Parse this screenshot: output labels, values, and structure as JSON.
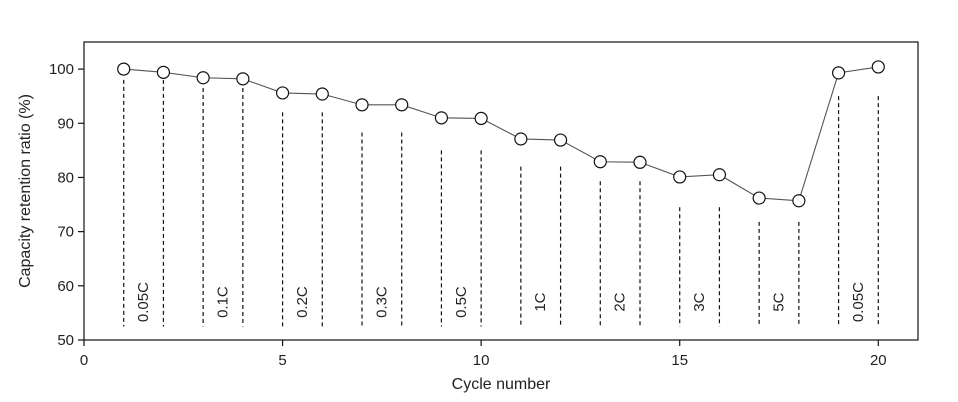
{
  "chart_data": {
    "type": "line",
    "xlabel": "Cycle number",
    "ylabel": "Capacity retention ratio (%)",
    "xlim": [
      0,
      21
    ],
    "ylim": [
      50,
      105
    ],
    "x_ticks": [
      0,
      5,
      10,
      15,
      20
    ],
    "y_ticks": [
      50,
      60,
      70,
      80,
      90,
      100
    ],
    "grid": false,
    "series": [
      {
        "x": [
          1,
          2,
          3,
          4,
          5,
          6,
          7,
          8,
          9,
          10,
          11,
          12,
          13,
          14,
          15,
          16,
          17,
          18,
          19,
          20
        ],
        "values": [
          100.0,
          99.4,
          98.4,
          98.2,
          95.6,
          95.4,
          93.4,
          93.4,
          91.0,
          90.9,
          87.1,
          86.9,
          82.9,
          82.8,
          80.1,
          80.5,
          76.2,
          75.7,
          99.3,
          100.4
        ]
      }
    ],
    "rate_groups": [
      {
        "label": "0.05C",
        "x": [
          1,
          2
        ],
        "top": 98
      },
      {
        "label": "0.1C",
        "x": [
          3,
          4
        ],
        "top": 96.5
      },
      {
        "label": "0.2C",
        "x": [
          5,
          6
        ],
        "top": 92
      },
      {
        "label": "0.3C",
        "x": [
          7,
          8
        ],
        "top": 88.3
      },
      {
        "label": "0.5C",
        "x": [
          9,
          10
        ],
        "top": 85
      },
      {
        "label": "1C",
        "x": [
          11,
          12
        ],
        "top": 82
      },
      {
        "label": "2C",
        "x": [
          13,
          14
        ],
        "top": 79.3
      },
      {
        "label": "3C",
        "x": [
          15,
          16
        ],
        "top": 74.5
      },
      {
        "label": "5C",
        "x": [
          17,
          18
        ],
        "top": 71.8
      },
      {
        "label": "0.05C",
        "x": [
          19,
          20
        ],
        "top": 95
      }
    ],
    "colors": {
      "line": "#555555",
      "marker_fill": "#ffffff",
      "marker_stroke": "#111111",
      "axis": "#111111"
    }
  }
}
